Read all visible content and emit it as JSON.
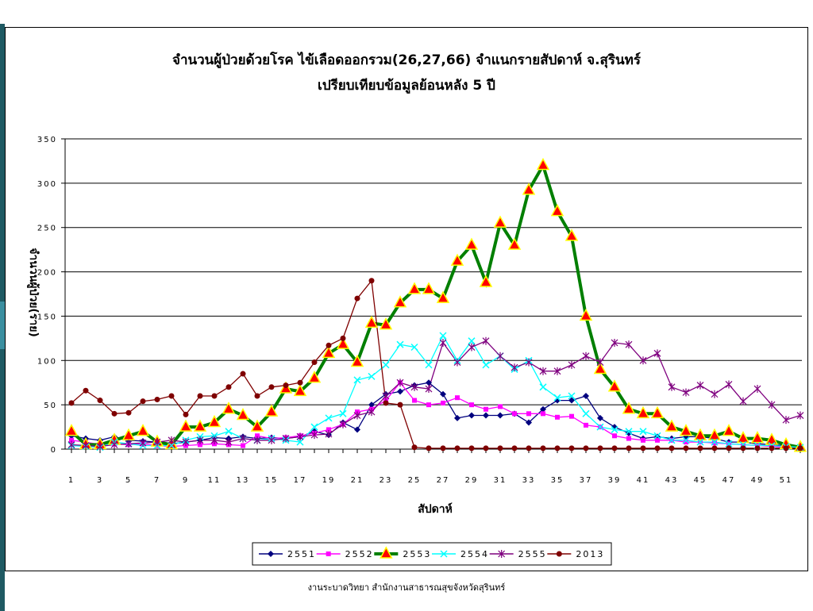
{
  "chart_data": {
    "type": "line",
    "title": "จำนวนผู้ป่วยด้วยโรค  ไข้เลือดออกรวม(26,27,66)  จำแนกรายสัปดาห์   จ.สุรินทร์",
    "subtitle": "เปรียบเทียบข้อมูลย้อนหลัง 5 ปี",
    "xlabel": "สัปดาห์",
    "ylabel": "จำนวนผู้ป่วย(ราย)",
    "ylim": [
      0,
      350
    ],
    "yticks": [
      0,
      50,
      100,
      150,
      200,
      250,
      300,
      350
    ],
    "xticks": [
      1,
      3,
      5,
      7,
      9,
      11,
      13,
      15,
      17,
      19,
      21,
      23,
      25,
      27,
      29,
      31,
      33,
      35,
      37,
      39,
      41,
      43,
      45,
      47,
      49,
      51
    ],
    "x": [
      1,
      2,
      3,
      4,
      5,
      6,
      7,
      8,
      9,
      10,
      11,
      12,
      13,
      14,
      15,
      16,
      17,
      18,
      19,
      20,
      21,
      22,
      23,
      24,
      25,
      26,
      27,
      28,
      29,
      30,
      31,
      32,
      33,
      34,
      35,
      36,
      37,
      38,
      39,
      40,
      41,
      42,
      43,
      44,
      45,
      46,
      47,
      48,
      49,
      50,
      51,
      52
    ],
    "grid": true,
    "legend_position": "bottom",
    "series": [
      {
        "name": "2551",
        "color": "#00007f",
        "marker": "diamond",
        "values": [
          15,
          12,
          10,
          14,
          10,
          9,
          8,
          6,
          8,
          10,
          13,
          12,
          14,
          12,
          13,
          12,
          14,
          20,
          16,
          30,
          22,
          50,
          62,
          65,
          72,
          75,
          62,
          35,
          38,
          38,
          38,
          40,
          30,
          45,
          55,
          55,
          60,
          35,
          25,
          18,
          12,
          14,
          12,
          14,
          14,
          12,
          8,
          8,
          6,
          5,
          4,
          3
        ]
      },
      {
        "name": "2552",
        "color": "#ff00ff",
        "marker": "square",
        "values": [
          10,
          8,
          5,
          6,
          5,
          6,
          4,
          3,
          4,
          5,
          6,
          5,
          4,
          15,
          12,
          13,
          15,
          18,
          22,
          28,
          42,
          45,
          55,
          75,
          55,
          50,
          52,
          58,
          50,
          45,
          48,
          40,
          40,
          40,
          36,
          37,
          27,
          25,
          15,
          12,
          10,
          10,
          10,
          8,
          8,
          7,
          6,
          5,
          4,
          3,
          2,
          2
        ]
      },
      {
        "name": "2553",
        "color": "#007f00",
        "marker": "triangle",
        "thick": true,
        "values": [
          20,
          5,
          5,
          10,
          15,
          20,
          8,
          5,
          25,
          25,
          30,
          45,
          38,
          25,
          42,
          68,
          65,
          80,
          108,
          118,
          98,
          142,
          140,
          165,
          180,
          180,
          170,
          212,
          230,
          188,
          255,
          230,
          292,
          320,
          268,
          240,
          150,
          90,
          70,
          45,
          40,
          40,
          25,
          20,
          15,
          15,
          20,
          12,
          12,
          10,
          5,
          2
        ]
      },
      {
        "name": "2554",
        "color": "#00ffff",
        "marker": "x",
        "values": [
          4,
          3,
          2,
          8,
          6,
          4,
          4,
          4,
          10,
          14,
          15,
          20,
          12,
          10,
          12,
          10,
          8,
          25,
          35,
          40,
          78,
          82,
          95,
          118,
          115,
          95,
          128,
          100,
          122,
          95,
          105,
          90,
          100,
          70,
          58,
          60,
          40,
          25,
          22,
          20,
          20,
          15,
          10,
          10,
          8,
          8,
          6,
          5,
          4,
          4,
          3,
          2
        ]
      },
      {
        "name": "2555",
        "color": "#7f007f",
        "marker": "star",
        "values": [
          5,
          4,
          3,
          5,
          6,
          7,
          8,
          10,
          8,
          10,
          10,
          8,
          12,
          10,
          10,
          12,
          14,
          16,
          17,
          28,
          38,
          42,
          60,
          75,
          70,
          68,
          120,
          98,
          115,
          122,
          105,
          92,
          98,
          88,
          88,
          95,
          105,
          98,
          120,
          118,
          100,
          108,
          70,
          64,
          72,
          62,
          73,
          54,
          68,
          50,
          33,
          38
        ]
      },
      {
        "name": "2013",
        "color": "#7f0000",
        "marker": "circle",
        "values": [
          52,
          66,
          55,
          40,
          41,
          54,
          56,
          60,
          39,
          60,
          60,
          70,
          85,
          60,
          70,
          72,
          75,
          98,
          117,
          125,
          170,
          190,
          52,
          50,
          2,
          1,
          1,
          1,
          1,
          1,
          1,
          1,
          1,
          1,
          1,
          1,
          1,
          1,
          1,
          1,
          1,
          1,
          1,
          1,
          1,
          1,
          1,
          1,
          1,
          1,
          1,
          1
        ]
      }
    ]
  },
  "footer": "งานระบาดวิทยา  สำนักงานสาธารณสุขจังหวัดสุรินทร์"
}
